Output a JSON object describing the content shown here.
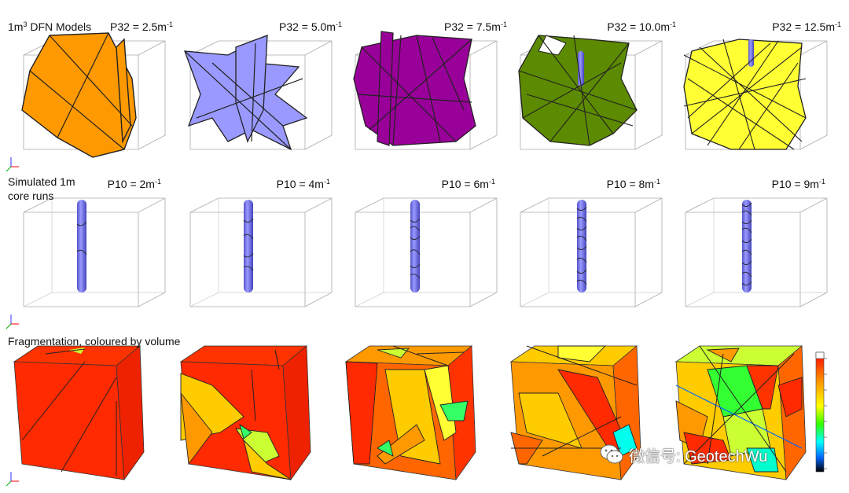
{
  "rows": {
    "dfn": {
      "title_pre": "1m",
      "title_sup": "3",
      "title_post": " DFN Models",
      "labels": [
        {
          "base": "P32 = 2.5m",
          "sup": "-1"
        },
        {
          "base": "P32 = 5.0m",
          "sup": "-1"
        },
        {
          "base": "P32 = 7.5m",
          "sup": "-1"
        },
        {
          "base": "P32 = 10.0m",
          "sup": "-1"
        },
        {
          "base": "P32 = 12.5m",
          "sup": "-1"
        }
      ],
      "fills": [
        "#ff9900",
        "#9999ff",
        "#990099",
        "#5c8a00",
        "#ffff33"
      ]
    },
    "core": {
      "title_line1": "Simulated 1m",
      "title_line2": "core runs",
      "labels": [
        {
          "base": "P10 = 2m",
          "sup": "-1"
        },
        {
          "base": "P10 = 4m",
          "sup": "-1"
        },
        {
          "base": "P10 = 6m",
          "sup": "-1"
        },
        {
          "base": "P10 = 8m",
          "sup": "-1"
        },
        {
          "base": "P10 = 9m",
          "sup": "-1"
        }
      ],
      "core_color": "#7777ee"
    },
    "fragmentation": {
      "title": "Fragmentation, coloured by volume"
    }
  },
  "colorbar": {
    "stops": [
      "#ff0000",
      "#ff9900",
      "#ffff00",
      "#33ff00",
      "#00ffff",
      "#0066ff",
      "#000000"
    ]
  },
  "watermark": {
    "text": "微信号: GeotechWu",
    "icon": "wechat-icon"
  }
}
